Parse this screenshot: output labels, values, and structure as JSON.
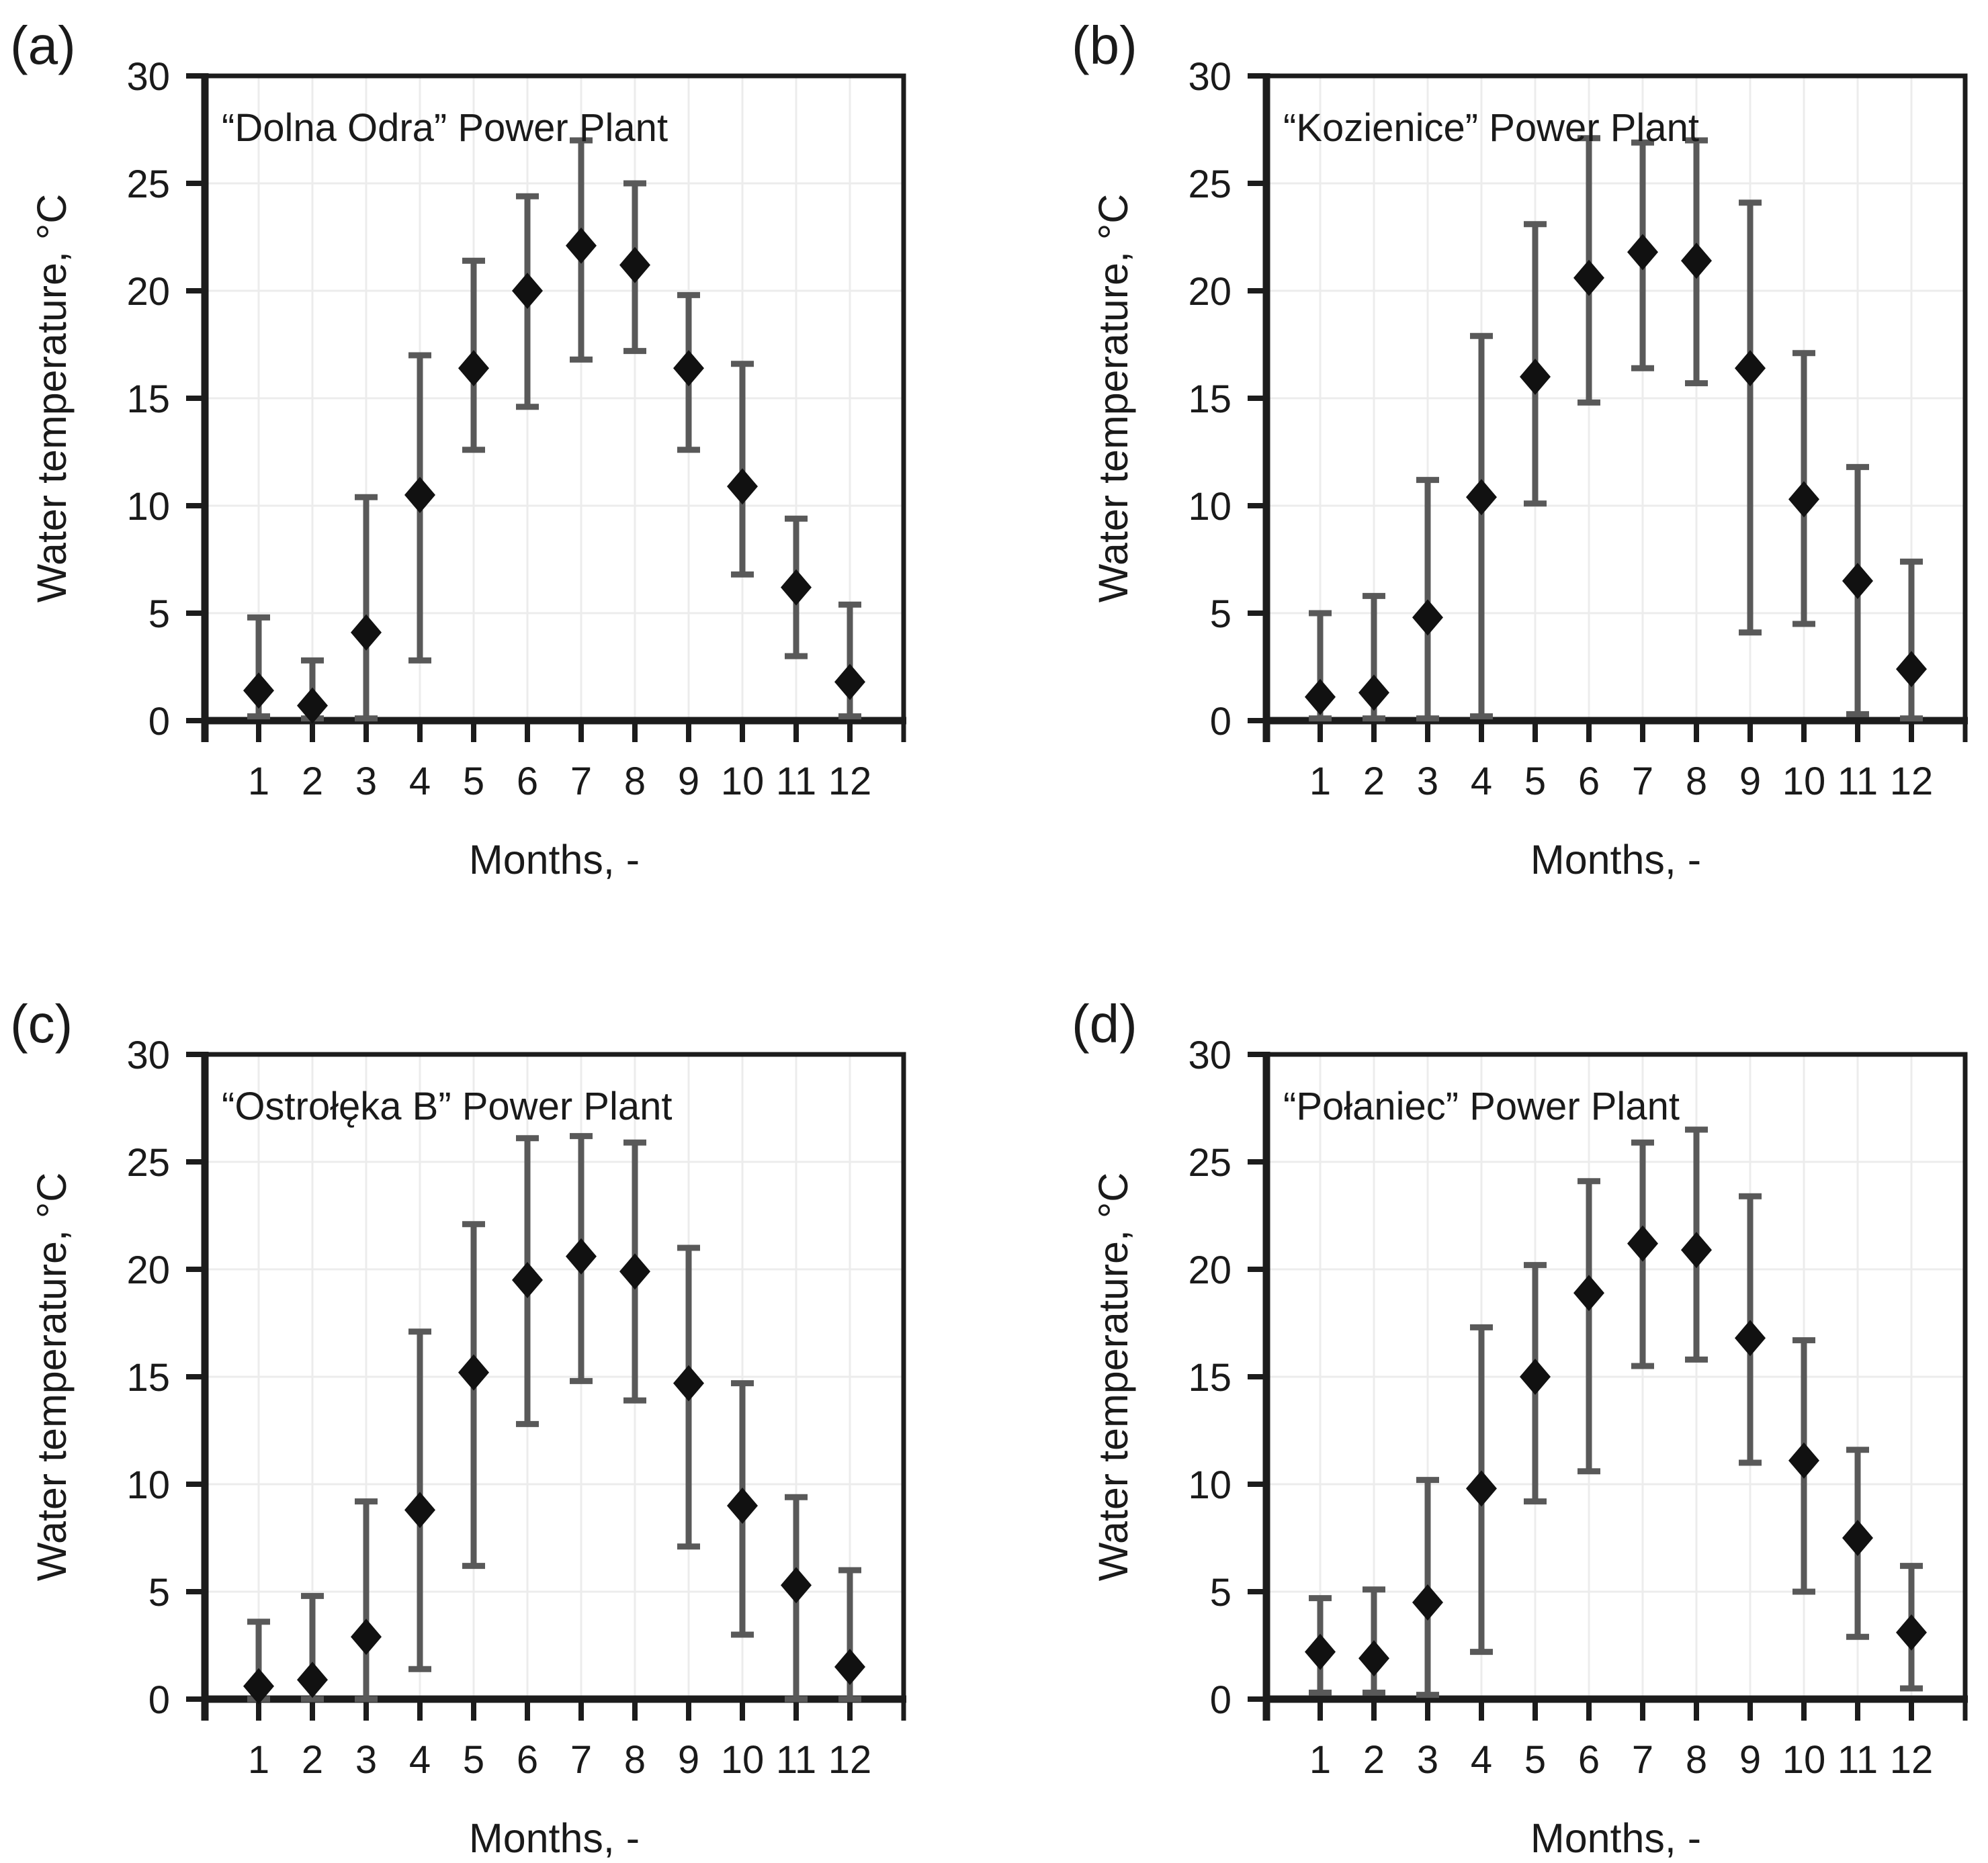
{
  "figure": {
    "ylabel": "Water temperature, °C",
    "xlabel": "Months, -",
    "colors": {
      "marker": "#111111",
      "error_bar": "#595959",
      "grid": "#ececec",
      "frame": "#1c1c1c",
      "text": "#1a1a1a",
      "background": "#ffffff"
    }
  },
  "chart_data": [
    {
      "type": "scatter",
      "panel_label": "(a)",
      "title": "“Dolna Odra” Power Plant",
      "xlabel": "Months, -",
      "ylabel": "Water temperature, °C",
      "x": [
        1,
        2,
        3,
        4,
        5,
        6,
        7,
        8,
        9,
        10,
        11,
        12
      ],
      "mean": [
        1.4,
        0.7,
        4.1,
        10.5,
        16.4,
        20.0,
        22.1,
        21.2,
        16.4,
        10.9,
        6.2,
        1.8
      ],
      "err_low": [
        0.2,
        0.1,
        0.1,
        2.8,
        12.6,
        14.6,
        16.8,
        17.2,
        12.6,
        6.8,
        3.0,
        0.2
      ],
      "err_high": [
        4.8,
        2.8,
        10.4,
        17.0,
        21.4,
        24.4,
        27.0,
        25.0,
        19.8,
        16.6,
        9.4,
        5.4
      ],
      "ylim": [
        0,
        30
      ],
      "yticks": [
        0,
        5,
        10,
        15,
        20,
        25,
        30
      ],
      "grid": true,
      "marker": "diamond",
      "legend": "none"
    },
    {
      "type": "scatter",
      "panel_label": "(b)",
      "title": "“Kozienice” Power Plant",
      "xlabel": "Months, -",
      "ylabel": "Water temperature, °C",
      "x": [
        1,
        2,
        3,
        4,
        5,
        6,
        7,
        8,
        9,
        10,
        11,
        12
      ],
      "mean": [
        1.1,
        1.3,
        4.8,
        10.4,
        16.0,
        20.6,
        21.8,
        21.4,
        16.4,
        10.3,
        6.5,
        2.4
      ],
      "err_low": [
        0.1,
        0.1,
        0.1,
        0.2,
        10.1,
        14.8,
        16.4,
        15.7,
        4.1,
        4.5,
        0.3,
        0.1
      ],
      "err_high": [
        5.0,
        5.8,
        11.2,
        17.9,
        23.1,
        27.1,
        26.9,
        27.0,
        24.1,
        17.1,
        11.8,
        7.4
      ],
      "ylim": [
        0,
        30
      ],
      "yticks": [
        0,
        5,
        10,
        15,
        20,
        25,
        30
      ],
      "grid": true,
      "marker": "diamond",
      "legend": "none"
    },
    {
      "type": "scatter",
      "panel_label": "(c)",
      "title": "“Ostrołęka B” Power Plant",
      "xlabel": "Months, -",
      "ylabel": "Water temperature, °C",
      "x": [
        1,
        2,
        3,
        4,
        5,
        6,
        7,
        8,
        9,
        10,
        11,
        12
      ],
      "mean": [
        0.6,
        0.9,
        2.9,
        8.8,
        15.2,
        19.5,
        20.6,
        19.9,
        14.7,
        9.0,
        5.3,
        1.5
      ],
      "err_low": [
        0.0,
        0.0,
        0.0,
        1.4,
        6.2,
        12.8,
        14.8,
        13.9,
        7.1,
        3.0,
        0.0,
        0.0
      ],
      "err_high": [
        3.6,
        4.8,
        9.2,
        17.1,
        22.1,
        26.1,
        26.2,
        25.9,
        21.0,
        14.7,
        9.4,
        6.0
      ],
      "ylim": [
        0,
        30
      ],
      "yticks": [
        0,
        5,
        10,
        15,
        20,
        25,
        30
      ],
      "grid": true,
      "marker": "diamond",
      "legend": "none"
    },
    {
      "type": "scatter",
      "panel_label": "(d)",
      "title": "“Połaniec” Power Plant",
      "xlabel": "Months, -",
      "ylabel": "Water temperature, °C",
      "x": [
        1,
        2,
        3,
        4,
        5,
        6,
        7,
        8,
        9,
        10,
        11,
        12
      ],
      "mean": [
        2.2,
        1.9,
        4.5,
        9.8,
        15.0,
        18.9,
        21.2,
        20.9,
        16.8,
        11.1,
        7.5,
        3.1
      ],
      "err_low": [
        0.3,
        0.3,
        0.2,
        2.2,
        9.2,
        10.6,
        15.5,
        15.8,
        11.0,
        5.0,
        2.9,
        0.5
      ],
      "err_high": [
        4.7,
        5.1,
        10.2,
        17.3,
        20.2,
        24.1,
        25.9,
        26.5,
        23.4,
        16.7,
        11.6,
        6.2
      ],
      "ylim": [
        0,
        30
      ],
      "yticks": [
        0,
        5,
        10,
        15,
        20,
        25,
        30
      ],
      "grid": true,
      "marker": "diamond",
      "legend": "none"
    }
  ]
}
